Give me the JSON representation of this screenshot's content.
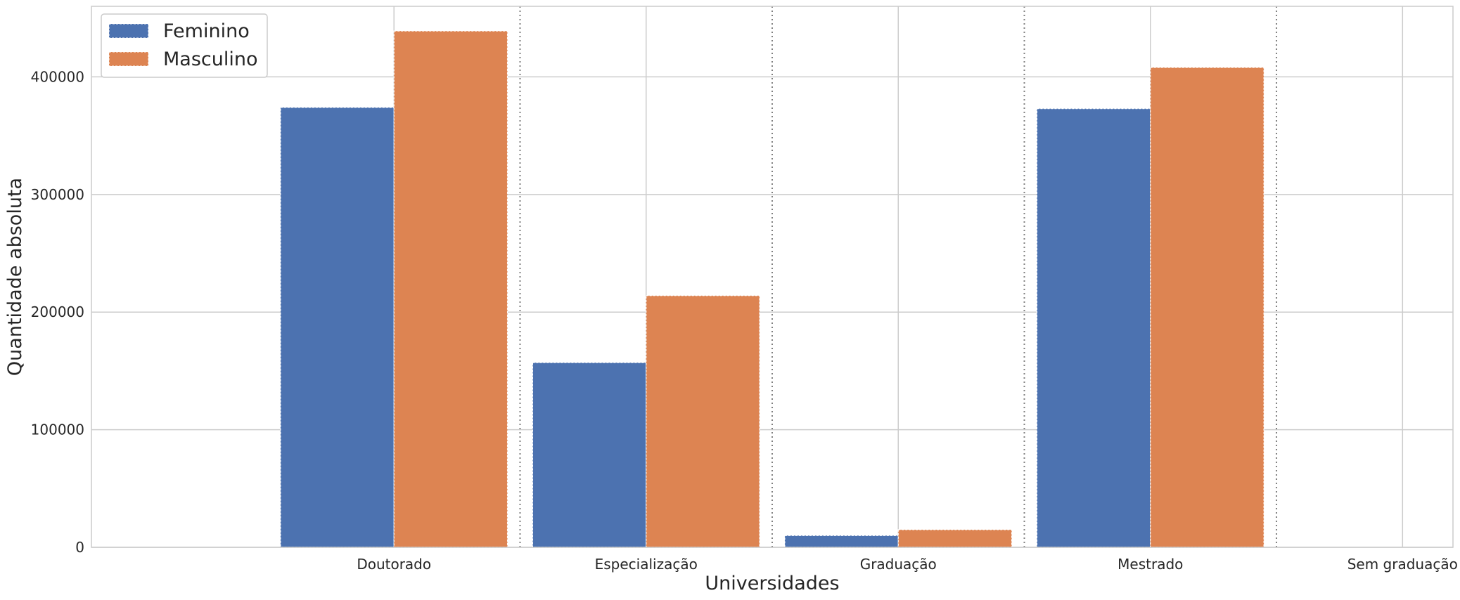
{
  "chart_data": {
    "type": "bar",
    "title": "",
    "xlabel": "Universidades",
    "ylabel": "Quantidade absoluta",
    "categories": [
      "Doutorado",
      "Especialização",
      "Graduação",
      "Mestrado",
      "Sem graduação"
    ],
    "series": [
      {
        "name": "Feminino",
        "color": "#4c72b0",
        "values": [
          374000,
          157000,
          10000,
          373000,
          0
        ]
      },
      {
        "name": "Masculino",
        "color": "#dd8452",
        "values": [
          439000,
          214000,
          15000,
          408000,
          0
        ]
      }
    ],
    "ylim": [
      0,
      460000
    ],
    "yticks": [
      0,
      100000,
      200000,
      300000,
      400000
    ],
    "ytick_labels": [
      "0",
      "100000",
      "200000",
      "300000",
      "400000"
    ],
    "grid": true,
    "category_separators": "dotted",
    "legend_position": "top-left"
  }
}
